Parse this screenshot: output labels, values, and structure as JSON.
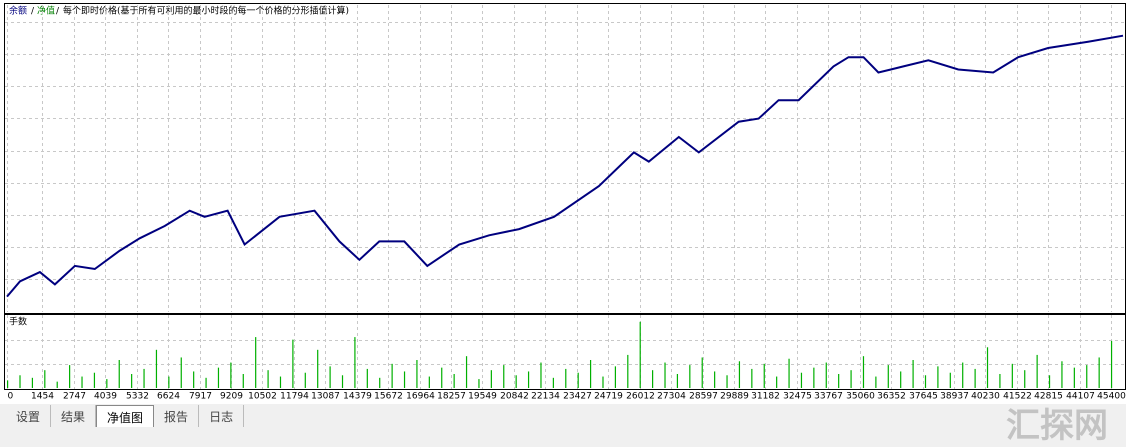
{
  "chart_data": [
    {
      "type": "line",
      "series": [
        {
          "name": "余额",
          "color": "#00007f",
          "x": [
            0,
            534,
            1354,
            1970,
            2791,
            3612,
            4638,
            5458,
            6484,
            7510,
            8126,
            9070,
            9768,
            11204,
            12641,
            13667,
            14488,
            15309,
            16335,
            17279,
            18592,
            19823,
            21054,
            22491,
            24338,
            25774,
            26390,
            27621,
            28442,
            30083,
            30904,
            31725,
            32546,
            33982,
            34598,
            35214,
            35830,
            36856,
            37882,
            39114,
            40550,
            41576,
            42807,
            44449,
            45885
          ],
          "values": [
            5,
            10,
            13,
            9,
            15,
            14,
            20,
            24,
            28,
            33,
            31,
            33,
            22,
            31,
            33,
            23,
            17,
            23,
            23,
            15,
            22,
            25,
            27,
            31,
            41,
            52,
            49,
            57,
            52,
            62,
            63,
            69,
            69,
            80,
            83,
            83,
            78,
            80,
            82,
            79,
            78,
            83,
            86,
            88,
            90
          ]
        }
      ],
      "equity_label": "净值",
      "equity_color": "#008000",
      "note": "每个即时价格(基于所有可利用的最小时段的每一个价格的分形插值计算)",
      "xlim": [
        0,
        45885
      ],
      "ylim": [
        0,
        100
      ],
      "grid": true
    },
    {
      "type": "bar",
      "title": "手数",
      "color": "#00b000",
      "x": [
        0,
        510,
        1020,
        1530,
        2040,
        2550,
        3060,
        3570,
        4080,
        4590,
        5100,
        5610,
        6120,
        6630,
        7140,
        7650,
        8160,
        8670,
        9180,
        9690,
        10200,
        10710,
        11220,
        11730,
        12240,
        12750,
        13260,
        13770,
        14280,
        14790,
        15300,
        15810,
        16320,
        16830,
        17340,
        17850,
        18360,
        18870,
        19380,
        19890,
        20400,
        20910,
        21420,
        21930,
        22440,
        22950,
        23460,
        23970,
        24480,
        24990,
        25500,
        26010,
        26520,
        27030,
        27540,
        28050,
        28560,
        29070,
        29580,
        30090,
        30600,
        31110,
        31620,
        32130,
        32640,
        33150,
        33660,
        34170,
        34680,
        35190,
        35700,
        36210,
        36720,
        37230,
        37740,
        38250,
        38760,
        39270,
        39780,
        40290,
        40800,
        41310,
        41820,
        42330,
        42840,
        43350,
        43860,
        44370,
        44880,
        45390
      ],
      "values": [
        6,
        10,
        8,
        14,
        5,
        18,
        9,
        12,
        7,
        22,
        11,
        15,
        30,
        9,
        24,
        13,
        8,
        16,
        20,
        11,
        40,
        14,
        9,
        38,
        12,
        30,
        17,
        10,
        40,
        15,
        8,
        19,
        13,
        22,
        9,
        16,
        11,
        25,
        7,
        14,
        18,
        10,
        13,
        20,
        8,
        15,
        12,
        22,
        9,
        17,
        26,
        52,
        14,
        20,
        11,
        18,
        24,
        13,
        10,
        21,
        15,
        19,
        9,
        23,
        12,
        16,
        20,
        11,
        14,
        25,
        9,
        18,
        13,
        22,
        10,
        17,
        12,
        20,
        15,
        32,
        11,
        19,
        14,
        26,
        10,
        21,
        16,
        18,
        24,
        37
      ],
      "ylim": [
        0,
        55
      ],
      "xlim": [
        0,
        45885
      ],
      "xticks": [
        0,
        1454,
        2747,
        4039,
        5332,
        6624,
        7917,
        9209,
        10502,
        11794,
        13087,
        14379,
        15672,
        16964,
        18257,
        19549,
        20842,
        22134,
        23427,
        24719,
        26012,
        27304,
        28597,
        29889,
        31182,
        32475,
        33767,
        35060,
        36352,
        37645,
        38937,
        40230,
        41522,
        42815,
        44107,
        45400
      ]
    }
  ],
  "tabs": [
    "设置",
    "结果",
    "净值图",
    "报告",
    "日志"
  ],
  "active_tab": 2,
  "watermark": "汇探网"
}
